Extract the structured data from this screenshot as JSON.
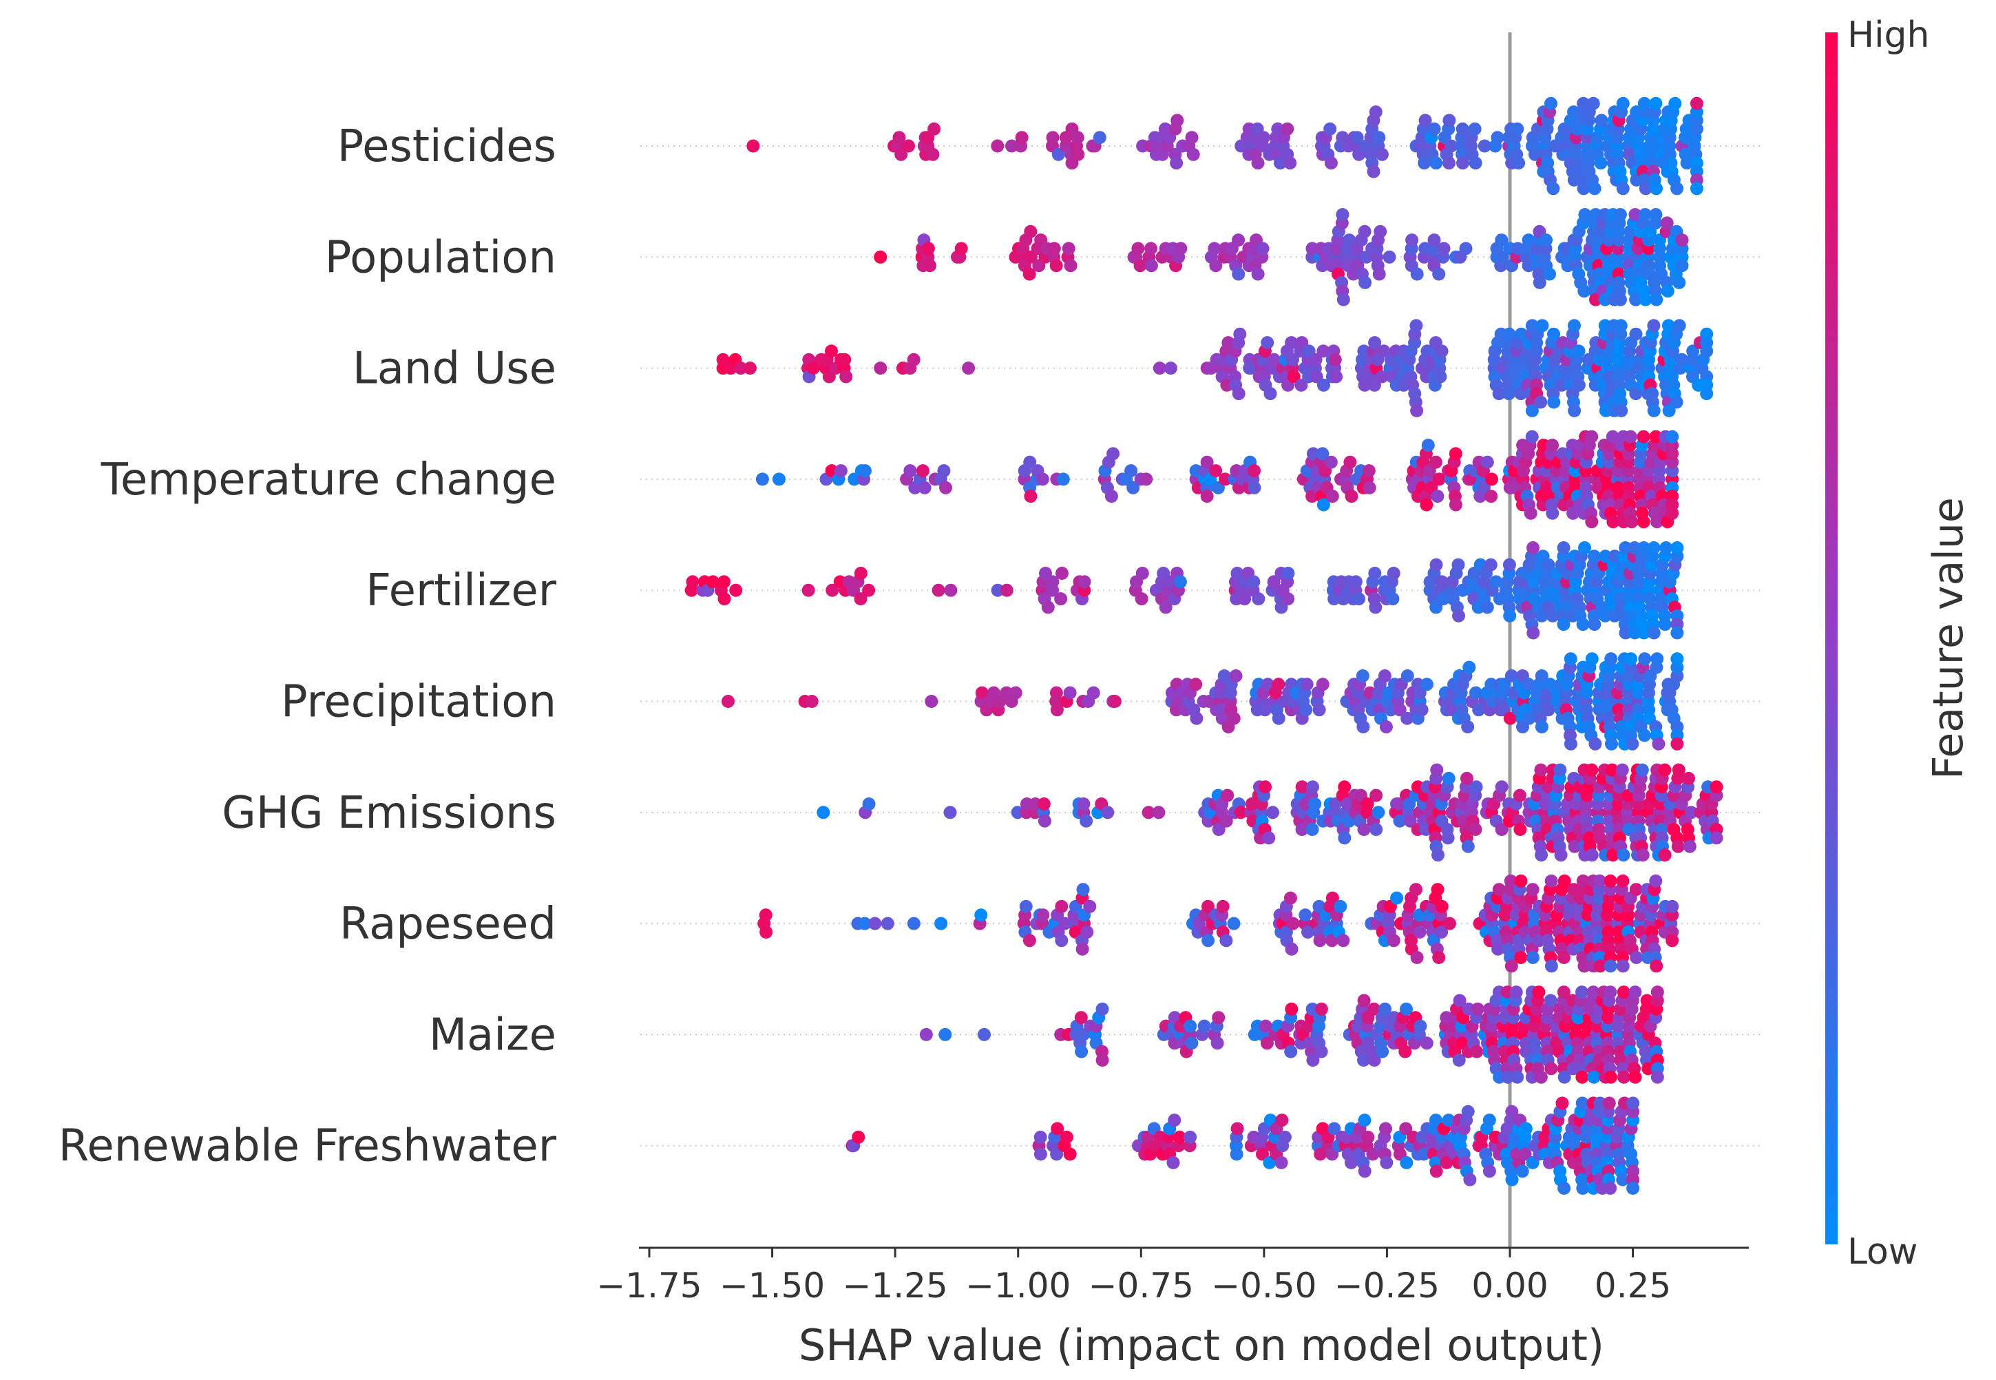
{
  "chart_data": {
    "type": "scatter",
    "subtype": "shap-beeswarm",
    "xlabel": "SHAP value (impact on model output)",
    "x_ticks": [
      -1.75,
      -1.5,
      -1.25,
      -1.0,
      -0.75,
      -0.5,
      -0.25,
      0.0,
      0.25
    ],
    "x_tick_labels": [
      "−1.75",
      "−1.50",
      "−1.25",
      "−1.00",
      "−0.75",
      "−0.50",
      "−0.25",
      "0.00",
      "0.25"
    ],
    "xlim": [
      -1.76,
      0.48
    ],
    "zero_line": 0.0,
    "colorbar": {
      "label": "Feature value",
      "high_label": "High",
      "low_label": "Low",
      "high_color": "#ff0051",
      "mid_color": "#9040c8",
      "low_color": "#008bfb"
    },
    "features": [
      {
        "name": "Pesticides",
        "min": -1.55,
        "max": 0.38,
        "peak": 0.25,
        "peak_width": 0.15,
        "high_side": "left",
        "mix": 0.1,
        "clusters": [
          [
            -1.55,
            1
          ],
          [
            -1.22,
            12
          ],
          [
            -1.02,
            4
          ],
          [
            -0.88,
            14
          ],
          [
            -0.7,
            18
          ],
          [
            -0.5,
            22
          ],
          [
            -0.32,
            26
          ],
          [
            -0.12,
            30
          ],
          [
            0.08,
            40
          ],
          [
            0.25,
            140
          ]
        ]
      },
      {
        "name": "Population",
        "min": -1.28,
        "max": 0.35,
        "peak": 0.22,
        "peak_width": 0.14,
        "high_side": "left",
        "mix": 0.1,
        "clusters": [
          [
            -1.28,
            1
          ],
          [
            -1.15,
            10
          ],
          [
            -0.95,
            20
          ],
          [
            -0.72,
            14
          ],
          [
            -0.55,
            20
          ],
          [
            -0.32,
            40
          ],
          [
            -0.15,
            16
          ],
          [
            0.02,
            20
          ],
          [
            0.22,
            140
          ]
        ]
      },
      {
        "name": "Land Use",
        "min": -1.6,
        "max": 0.4,
        "peak": 0.25,
        "peak_width": 0.16,
        "high_side": "left",
        "mix": 0.12,
        "clusters": [
          [
            -1.58,
            6
          ],
          [
            -1.4,
            14
          ],
          [
            -1.25,
            4
          ],
          [
            -1.12,
            1
          ],
          [
            -0.72,
            2
          ],
          [
            -0.55,
            30
          ],
          [
            -0.42,
            30
          ],
          [
            -0.22,
            50
          ],
          [
            0.05,
            60
          ],
          [
            0.25,
            140
          ]
        ]
      },
      {
        "name": "Temperature change",
        "min": -1.55,
        "max": 0.33,
        "peak": 0.24,
        "peak_width": 0.12,
        "high_side": "right",
        "mix": 0.35,
        "clusters": [
          [
            -1.52,
            2
          ],
          [
            -1.35,
            8
          ],
          [
            -1.18,
            10
          ],
          [
            -0.95,
            10
          ],
          [
            -0.78,
            12
          ],
          [
            -0.58,
            22
          ],
          [
            -0.35,
            30
          ],
          [
            -0.12,
            40
          ],
          [
            0.08,
            60
          ],
          [
            0.24,
            130
          ]
        ]
      },
      {
        "name": "Fertilizer",
        "min": -1.68,
        "max": 0.34,
        "peak": 0.26,
        "peak_width": 0.12,
        "high_side": "left",
        "mix": 0.12,
        "clusters": [
          [
            -1.62,
            10
          ],
          [
            -1.4,
            2
          ],
          [
            -1.32,
            8
          ],
          [
            -1.15,
            2
          ],
          [
            -1.05,
            2
          ],
          [
            -0.9,
            14
          ],
          [
            -0.72,
            16
          ],
          [
            -0.5,
            20
          ],
          [
            -0.3,
            24
          ],
          [
            -0.08,
            40
          ],
          [
            0.1,
            60
          ],
          [
            0.26,
            120
          ]
        ]
      },
      {
        "name": "Precipitation",
        "min": -1.6,
        "max": 0.34,
        "peak": 0.24,
        "peak_width": 0.13,
        "high_side": "left",
        "mix": 0.18,
        "clusters": [
          [
            -1.58,
            1
          ],
          [
            -1.45,
            2
          ],
          [
            -1.2,
            1
          ],
          [
            -1.05,
            10
          ],
          [
            -0.88,
            8
          ],
          [
            -0.78,
            2
          ],
          [
            -0.62,
            30
          ],
          [
            -0.45,
            30
          ],
          [
            -0.25,
            40
          ],
          [
            -0.05,
            40
          ],
          [
            0.1,
            40
          ],
          [
            0.24,
            130
          ]
        ]
      },
      {
        "name": "GHG Emissions",
        "min": -1.42,
        "max": 0.42,
        "peak": 0.26,
        "peak_width": 0.16,
        "high_side": "right",
        "mix": 0.4,
        "clusters": [
          [
            -1.42,
            1
          ],
          [
            -1.34,
            2
          ],
          [
            -1.12,
            1
          ],
          [
            -0.98,
            8
          ],
          [
            -0.85,
            8
          ],
          [
            -0.72,
            2
          ],
          [
            -0.55,
            30
          ],
          [
            -0.35,
            40
          ],
          [
            -0.15,
            50
          ],
          [
            0.06,
            80
          ],
          [
            0.25,
            160
          ]
        ]
      },
      {
        "name": "Rapeseed",
        "min": -1.58,
        "max": 0.33,
        "peak": 0.2,
        "peak_width": 0.12,
        "high_side": "right",
        "mix": 0.4,
        "clusters": [
          [
            -1.55,
            3
          ],
          [
            -1.3,
            4
          ],
          [
            -1.18,
            2
          ],
          [
            -1.05,
            2
          ],
          [
            -0.92,
            28
          ],
          [
            -0.6,
            16
          ],
          [
            -0.4,
            30
          ],
          [
            -0.2,
            40
          ],
          [
            0.02,
            60
          ],
          [
            0.2,
            140
          ]
        ]
      },
      {
        "name": "Maize",
        "min": -1.2,
        "max": 0.3,
        "peak": 0.2,
        "peak_width": 0.14,
        "high_side": "right",
        "mix": 0.4,
        "clusters": [
          [
            -1.2,
            1
          ],
          [
            -1.12,
            1
          ],
          [
            -1.05,
            1
          ],
          [
            -0.88,
            16
          ],
          [
            -0.65,
            20
          ],
          [
            -0.45,
            30
          ],
          [
            -0.25,
            40
          ],
          [
            -0.05,
            60
          ],
          [
            0.08,
            80
          ],
          [
            0.22,
            130
          ]
        ]
      },
      {
        "name": "Renewable Freshwater",
        "min": -1.38,
        "max": 0.25,
        "peak": 0.18,
        "peak_width": 0.08,
        "high_side": "left",
        "mix": 0.4,
        "clusters": [
          [
            -1.36,
            3
          ],
          [
            -0.92,
            10
          ],
          [
            -0.7,
            20
          ],
          [
            -0.5,
            20
          ],
          [
            -0.32,
            30
          ],
          [
            -0.15,
            40
          ],
          [
            0.02,
            50
          ],
          [
            0.18,
            110
          ]
        ]
      }
    ]
  }
}
